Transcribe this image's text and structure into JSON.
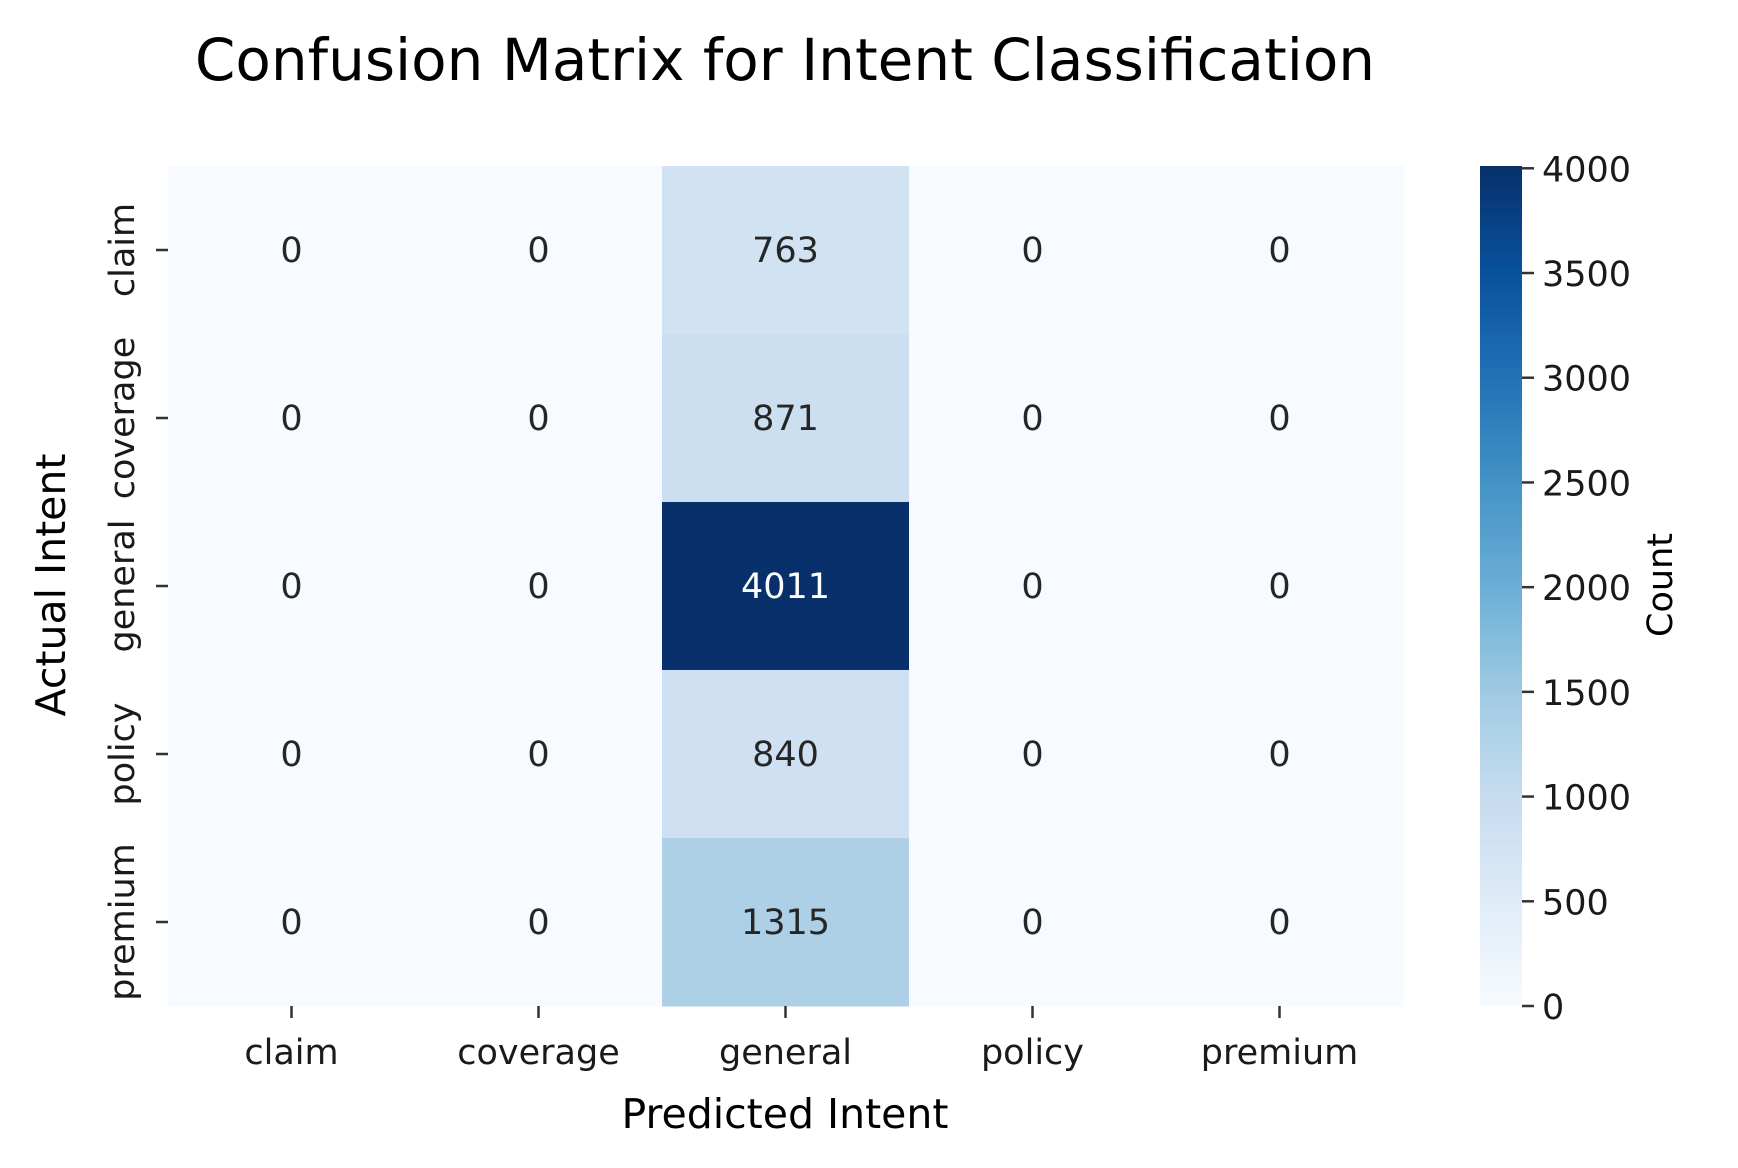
{
  "chart_data": {
    "type": "heatmap",
    "title": "Confusion Matrix for Intent Classification",
    "xlabel": "Predicted Intent",
    "ylabel": "Actual Intent",
    "x_categories": [
      "claim",
      "coverage",
      "general",
      "policy",
      "premium"
    ],
    "y_categories": [
      "claim",
      "coverage",
      "general",
      "policy",
      "premium"
    ],
    "values": [
      [
        0,
        0,
        763,
        0,
        0
      ],
      [
        0,
        0,
        871,
        0,
        0
      ],
      [
        0,
        0,
        4011,
        0,
        0
      ],
      [
        0,
        0,
        840,
        0,
        0
      ],
      [
        0,
        0,
        1315,
        0,
        0
      ]
    ],
    "colorbar": {
      "label": "Count",
      "min": 0,
      "max": 4011,
      "ticks": [
        0,
        500,
        1000,
        1500,
        2000,
        2500,
        3000,
        3500,
        4000
      ],
      "colormap": [
        "#f7fbff",
        "#deebf7",
        "#c6dbef",
        "#9ecae1",
        "#6baed6",
        "#4292c6",
        "#2171b5",
        "#08519c",
        "#08306b"
      ]
    }
  }
}
